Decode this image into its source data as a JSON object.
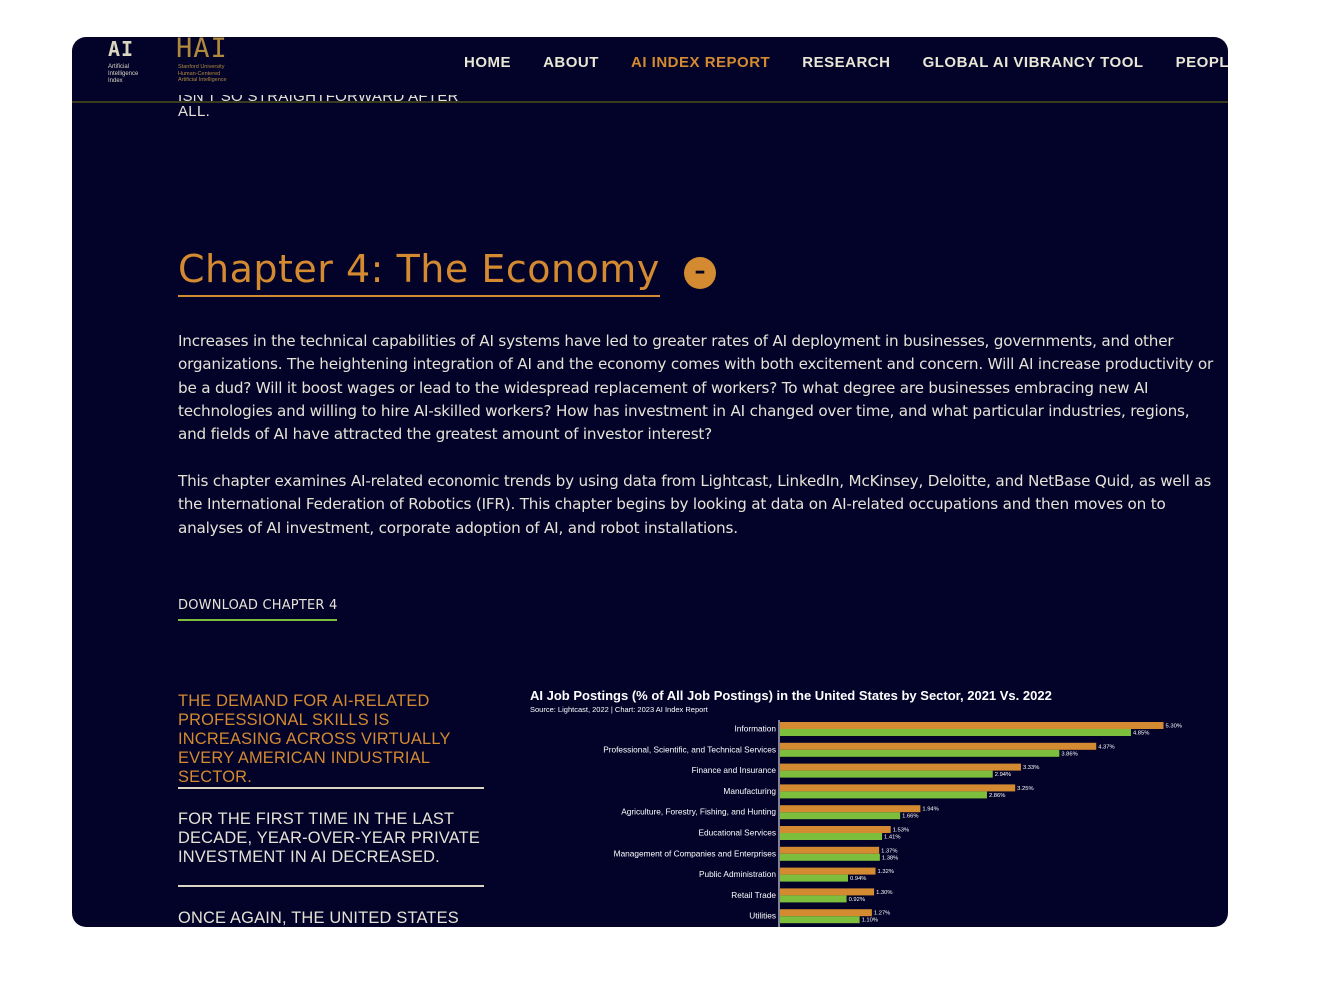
{
  "logos": {
    "ai_index": {
      "mark": "AI",
      "lines": [
        "Artificial",
        "Intelligence",
        "Index"
      ]
    },
    "hai": {
      "mark": "HAI",
      "lines": [
        "Stanford University",
        "Human-Centered",
        "Artificial Intelligence"
      ]
    }
  },
  "nav": {
    "items": [
      {
        "label": "HOME",
        "active": false
      },
      {
        "label": "ABOUT",
        "active": false
      },
      {
        "label": "AI INDEX REPORT",
        "active": true
      },
      {
        "label": "RESEARCH",
        "active": false
      },
      {
        "label": "GLOBAL AI VIBRANCY TOOL",
        "active": false
      },
      {
        "label": "PEOPLE",
        "active": false
      }
    ]
  },
  "cut_text": {
    "line1": "ISN'T SO STRAIGHTFORWARD AFTER",
    "line2": "ALL."
  },
  "chapter": {
    "title": "Chapter 4: The Economy",
    "collapse_symbol": "–",
    "paragraph1": "Increases in the technical capabilities of AI systems have led to greater rates of AI deployment in businesses, governments, and other organizations. The heightening integration of AI and the economy comes with both excitement and concern. Will AI increase productivity or be a dud? Will it boost wages or lead to the widespread replacement of workers? To what degree are businesses embracing new AI technologies and willing to hire AI-skilled workers? How has investment in AI changed over time, and what particular industries, regions, and fields of AI have attracted the greatest amount of investor interest?",
    "paragraph2": "This chapter examines AI-related economic trends by using data from Lightcast, LinkedIn, McKinsey, Deloitte, and NetBase Quid, as well as the International Federation of Robotics (IFR). This chapter begins by looking at data on AI-related occupations and then moves on to analyses of AI investment, corporate adoption of AI, and robot installations.",
    "download_label": "DOWNLOAD CHAPTER 4"
  },
  "highlights": [
    "THE DEMAND FOR AI-RELATED PROFESSIONAL SKILLS IS INCREASING ACROSS VIRTUALLY EVERY AMERICAN INDUSTRIAL SECTOR.",
    "FOR THE FIRST TIME IN THE LAST DECADE, YEAR-OVER-YEAR PRIVATE INVESTMENT IN AI DECREASED.",
    "ONCE AGAIN, THE UNITED STATES"
  ],
  "chart_data": {
    "type": "bar",
    "orientation": "horizontal",
    "title": "AI Job Postings (% of All Job Postings) in the United States by Sector, 2021 Vs. 2022",
    "source": "Source: Lightcast, 2022 | Chart: 2023 AI Index Report",
    "categories": [
      "Information",
      "Professional, Scientific, and Technical Services",
      "Finance and Insurance",
      "Manufacturing",
      "Agriculture, Forestry, Fishing, and Hunting",
      "Educational Services",
      "Management of Companies and Enterprises",
      "Public Administration",
      "Retail Trade",
      "Utilities"
    ],
    "series": [
      {
        "name": "2022",
        "color": "#d38a30",
        "values": [
          5.3,
          4.37,
          3.33,
          3.25,
          1.94,
          1.53,
          1.37,
          1.32,
          1.3,
          1.27
        ],
        "labels": [
          "5.30%",
          "4.37%",
          "3.33%",
          "3.25%",
          "1.94%",
          "1.53%",
          "1.37%",
          "1.32%",
          "1.30%",
          "1.27%"
        ]
      },
      {
        "name": "2021",
        "color": "#7dbf3c",
        "values": [
          4.85,
          3.86,
          2.94,
          2.86,
          1.66,
          1.41,
          1.38,
          0.94,
          0.92,
          1.1
        ],
        "labels": [
          "4.85%",
          "3.86%",
          "2.94%",
          "2.86%",
          "1.66%",
          "1.41%",
          "1.38%",
          "0.94%",
          "0.92%",
          "1.10%"
        ]
      }
    ],
    "xlim": [
      0,
      5.5
    ],
    "legend": "none",
    "grid": false
  }
}
